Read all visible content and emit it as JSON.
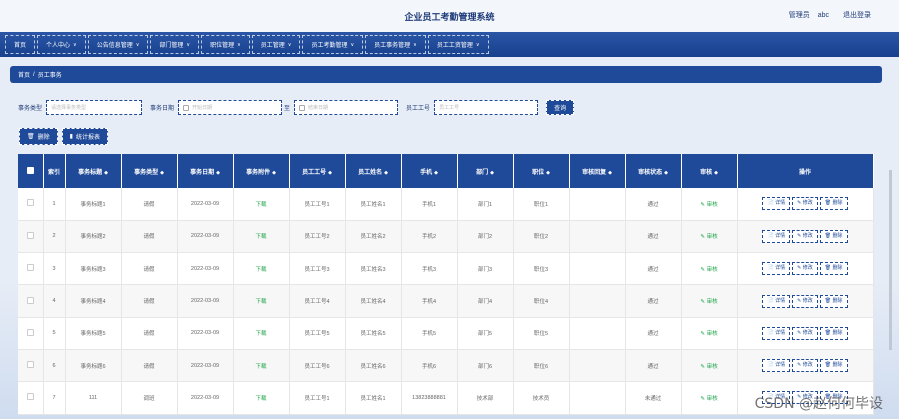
{
  "header": {
    "title": "企业员工考勤管理系统",
    "user_role": "管理员",
    "username": "abc",
    "logout": "退出登录"
  },
  "nav": {
    "items": [
      {
        "label": "首页",
        "dropdown": false
      },
      {
        "label": "个人中心",
        "dropdown": true
      },
      {
        "label": "公告信息管理",
        "dropdown": true
      },
      {
        "label": "部门管理",
        "dropdown": true
      },
      {
        "label": "职位管理",
        "dropdown": true
      },
      {
        "label": "员工管理",
        "dropdown": true
      },
      {
        "label": "员工考勤管理",
        "dropdown": true
      },
      {
        "label": "员工事务管理",
        "dropdown": true
      },
      {
        "label": "员工工资管理",
        "dropdown": true
      }
    ],
    "caret": "∨"
  },
  "breadcrumb": {
    "home": "首页",
    "separator": "/",
    "current": "员工事务"
  },
  "search": {
    "type_label": "事务类型",
    "type_placeholder": "请选择事务类型",
    "date_label": "事务日期",
    "date_start_placeholder": "开始日期",
    "to": "至",
    "date_end_placeholder": "结束日期",
    "emp_label": "员工工号",
    "emp_placeholder": "员工工号",
    "query_button": "查询"
  },
  "actions": {
    "delete": "删除",
    "report": "统计报表"
  },
  "table": {
    "columns": [
      "索引",
      "事务标题",
      "事务类型",
      "事务日期",
      "事务附件",
      "员工工号",
      "员工姓名",
      "手机",
      "部门",
      "职位",
      "审核回复",
      "审核状态",
      "审核",
      "操作"
    ],
    "sortable": [
      false,
      true,
      true,
      true,
      true,
      true,
      true,
      true,
      true,
      true,
      true,
      true,
      true,
      false
    ],
    "sort_icon": "◆",
    "rows": [
      {
        "idx": "1",
        "title": "事务标题1",
        "type": "请假",
        "date": "2022-03-09",
        "file": "下载",
        "emp_no": "员工工号1",
        "emp_name": "员工姓名1",
        "phone": "手机1",
        "dept": "部门1",
        "pos": "职位1",
        "reply": "",
        "status": "通过",
        "audit": "审核"
      },
      {
        "idx": "2",
        "title": "事务标题2",
        "type": "请假",
        "date": "2022-03-09",
        "file": "下载",
        "emp_no": "员工工号2",
        "emp_name": "员工姓名2",
        "phone": "手机2",
        "dept": "部门2",
        "pos": "职位2",
        "reply": "",
        "status": "通过",
        "audit": "审核"
      },
      {
        "idx": "3",
        "title": "事务标题3",
        "type": "请假",
        "date": "2022-03-09",
        "file": "下载",
        "emp_no": "员工工号3",
        "emp_name": "员工姓名3",
        "phone": "手机3",
        "dept": "部门3",
        "pos": "职位3",
        "reply": "",
        "status": "通过",
        "audit": "审核"
      },
      {
        "idx": "4",
        "title": "事务标题4",
        "type": "请假",
        "date": "2022-03-09",
        "file": "下载",
        "emp_no": "员工工号4",
        "emp_name": "员工姓名4",
        "phone": "手机4",
        "dept": "部门4",
        "pos": "职位4",
        "reply": "",
        "status": "通过",
        "audit": "审核"
      },
      {
        "idx": "5",
        "title": "事务标题5",
        "type": "请假",
        "date": "2022-03-09",
        "file": "下载",
        "emp_no": "员工工号5",
        "emp_name": "员工姓名5",
        "phone": "手机5",
        "dept": "部门5",
        "pos": "职位5",
        "reply": "",
        "status": "通过",
        "audit": "审核"
      },
      {
        "idx": "6",
        "title": "事务标题6",
        "type": "请假",
        "date": "2022-03-09",
        "file": "下载",
        "emp_no": "员工工号6",
        "emp_name": "员工姓名6",
        "phone": "手机6",
        "dept": "部门6",
        "pos": "职位6",
        "reply": "",
        "status": "通过",
        "audit": "审核"
      },
      {
        "idx": "7",
        "title": "111",
        "type": "调班",
        "date": "2022-03-09",
        "file": "下载",
        "emp_no": "员工工号1",
        "emp_name": "员工姓名1",
        "phone": "13823888881",
        "dept": "技术部",
        "pos": "技术员",
        "reply": "",
        "status": "未通过",
        "audit": "审核"
      }
    ],
    "row_buttons": {
      "detail": "详情",
      "edit": "修改",
      "delete": "删除"
    }
  },
  "watermark": "CSDN @赵何何毕设",
  "colors": {
    "primary": "#1f4a99",
    "accent_green": "#1fa54a",
    "background": "#e7edf7"
  }
}
